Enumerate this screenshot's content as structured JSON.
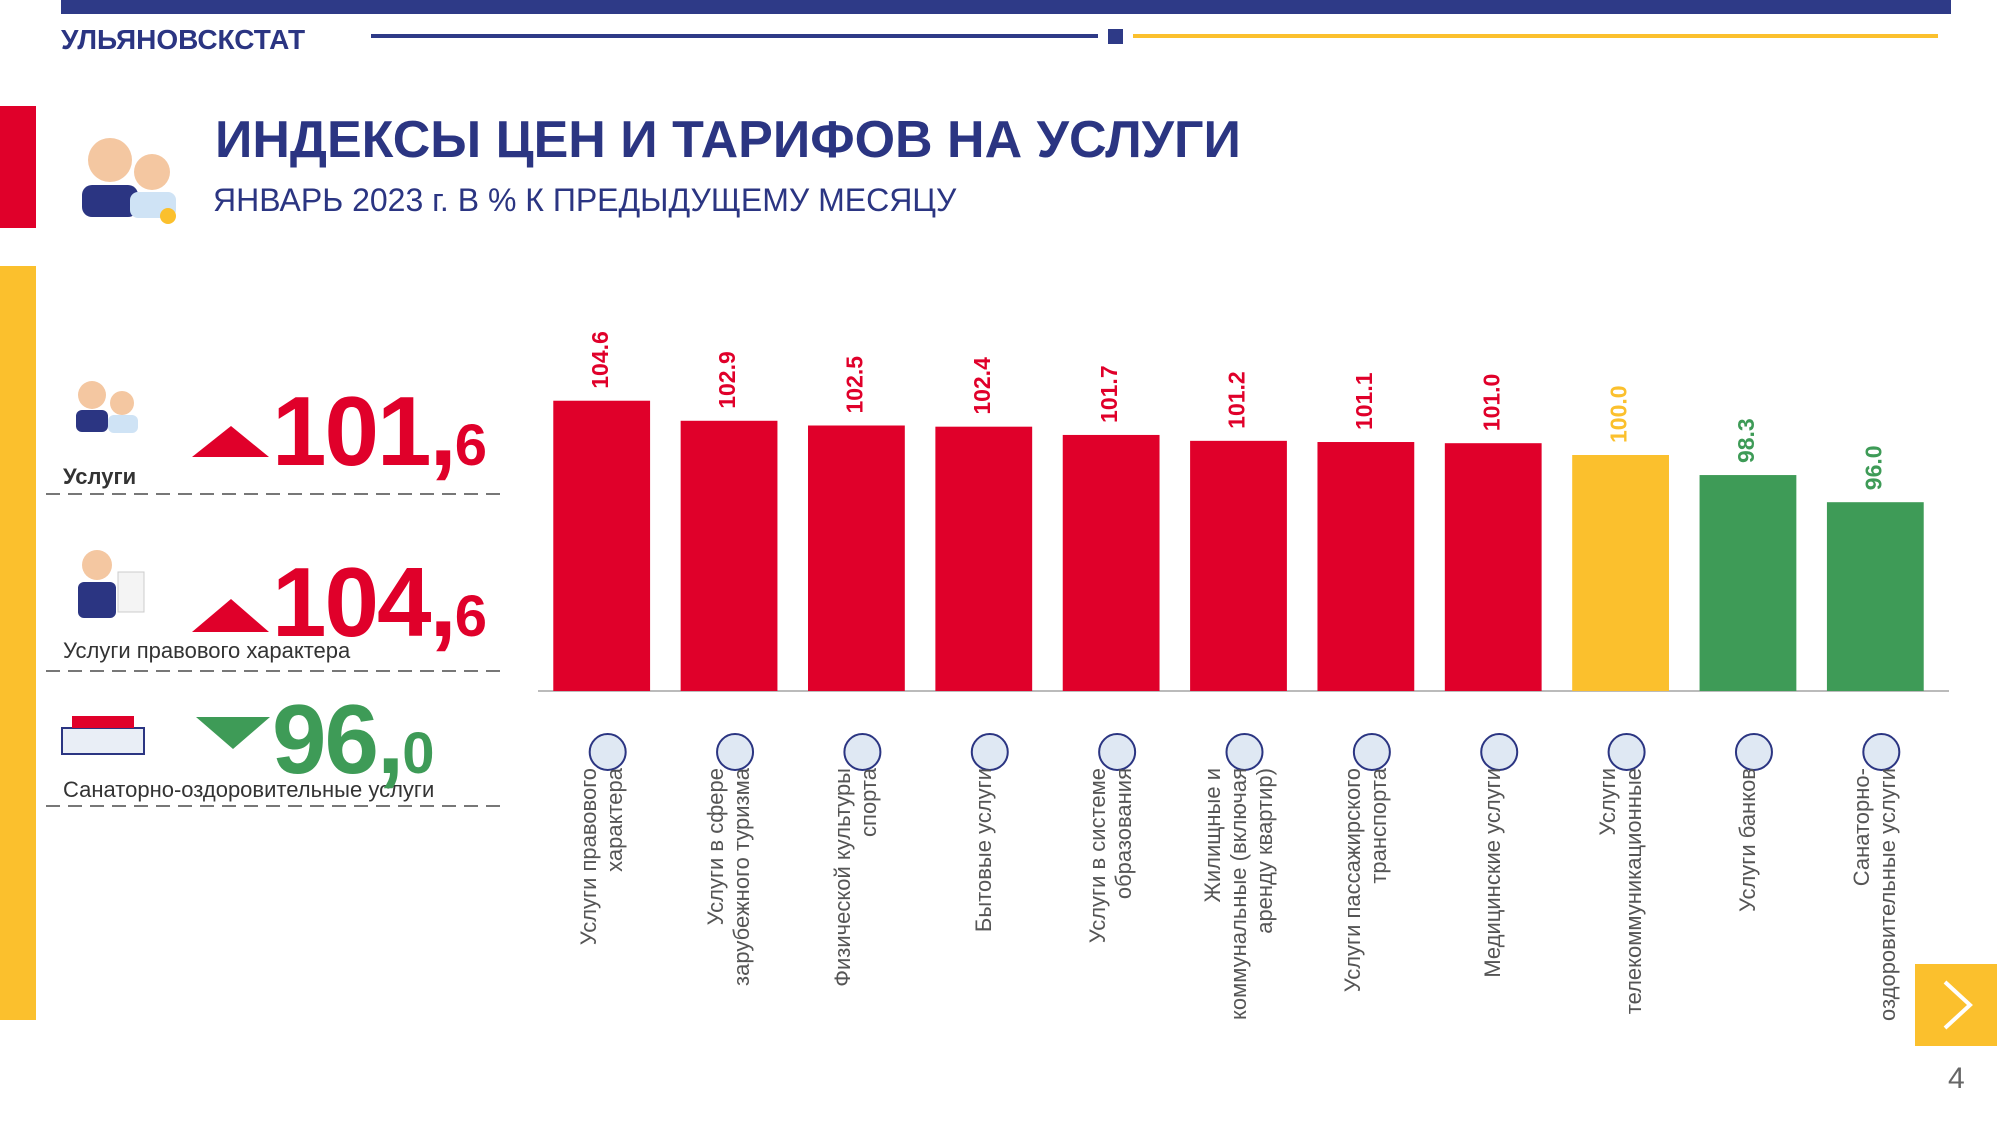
{
  "header": {
    "brand": "УЛЬЯНОВСКСТАТ"
  },
  "title": "ИНДЕКСЫ ЦЕН И ТАРИФОВ НА УСЛУГИ",
  "subtitle": "ЯНВАРЬ 2023 г. В % К ПРЕДЫДУЩЕМУ МЕСЯЦУ",
  "kpis": [
    {
      "label": "Услуги",
      "value": 101.6,
      "value_label": "101,6",
      "color": "#e0002a"
    },
    {
      "label": "Услуги правового характера",
      "value": 104.6,
      "value_label": "104,6",
      "color": "#e0002a"
    },
    {
      "label": "Санаторно-оздоровительные услуги",
      "value": 96.0,
      "value_label": "96,0",
      "color": "#3e9b57"
    }
  ],
  "chart_data": {
    "type": "bar",
    "categories": [
      "Услуги правового характера",
      "Услуги в сфере зарубежного туризма",
      "Физической культуры спорта",
      "Бытовые услуги",
      "Услуги в системе образования",
      "Жилищные и коммунальные (включая аренду квартир)",
      "Услуги пассажирского транспорта",
      "Медицинские услуги",
      "Услуги телекоммуникационные",
      "Услуги банков",
      "Санаторно-оздоровительные услуги"
    ],
    "values": [
      104.6,
      102.9,
      102.5,
      102.4,
      101.7,
      101.2,
      101.1,
      101.0,
      100.0,
      98.3,
      96.0
    ],
    "value_labels": [
      "104.6",
      "102.9",
      "102.5",
      "102.4",
      "101.7",
      "101.2",
      "101.1",
      "101.0",
      "100.0",
      "98.3",
      "96.0"
    ],
    "colors": [
      "#e0002a",
      "#e0002a",
      "#e0002a",
      "#e0002a",
      "#e0002a",
      "#e0002a",
      "#e0002a",
      "#e0002a",
      "#fbc02d",
      "#3e9b57",
      "#3e9b57"
    ],
    "ylim": [
      80,
      105
    ]
  },
  "page_number": "4"
}
